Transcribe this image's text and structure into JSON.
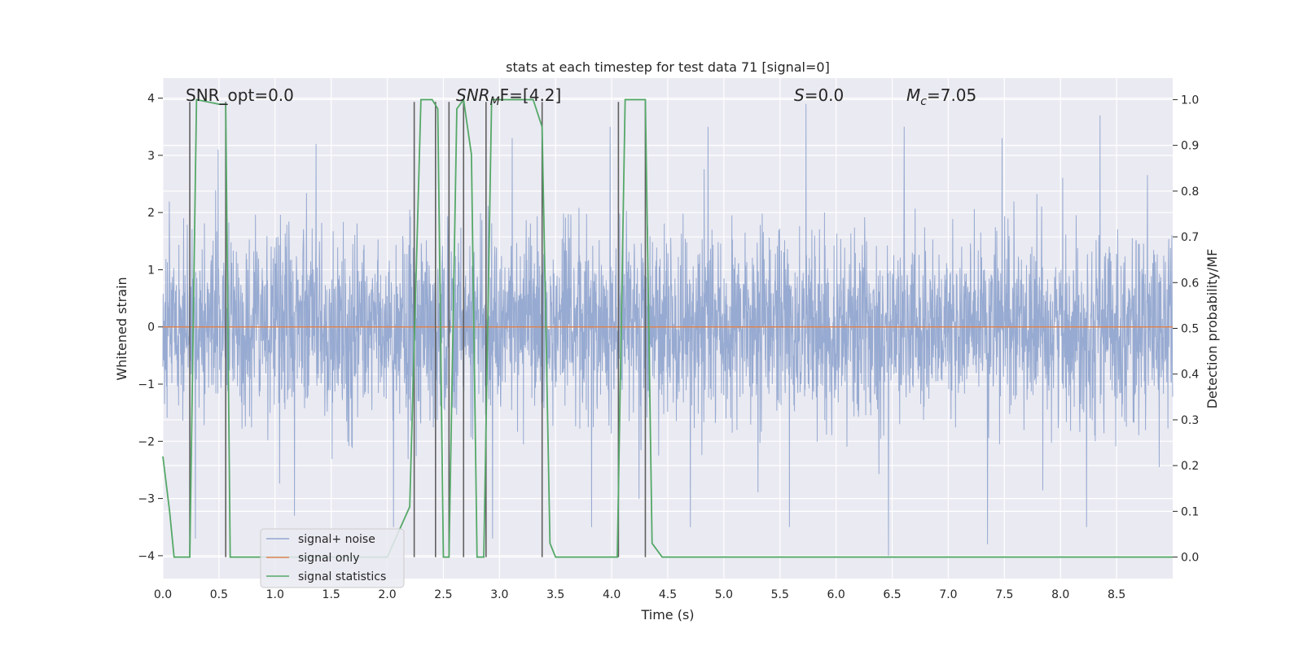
{
  "chart_data": {
    "type": "line",
    "title": "stats at each timestep for test data 71 [signal=0]",
    "xlabel": "Time (s)",
    "ylabel": "Whitened strain",
    "y2label": "Detection probability/MF",
    "xlim": [
      0,
      9.0
    ],
    "ylim": [
      -4.4,
      4.35
    ],
    "y2lim": [
      -0.047,
      1.047
    ],
    "xticks": [
      "0.0",
      "0.5",
      "1.0",
      "1.5",
      "2.0",
      "2.5",
      "3.0",
      "3.5",
      "4.0",
      "4.5",
      "5.0",
      "5.5",
      "6.0",
      "6.5",
      "7.0",
      "7.5",
      "8.0",
      "8.5"
    ],
    "yticks": [
      "4",
      "3",
      "2",
      "1",
      "0",
      "−1",
      "−2",
      "−3",
      "−4"
    ],
    "y2ticks": [
      "1.0",
      "0.9",
      "0.8",
      "0.7",
      "0.6",
      "0.5",
      "0.4",
      "0.3",
      "0.2",
      "0.1",
      "0.0"
    ],
    "grid": true,
    "legend_position": "lower-left",
    "annotations": {
      "snr_opt": "SNR_opt=0.0",
      "snr_mf_prefix": "SNR",
      "snr_mf_sub": "M",
      "snr_mf_suffix": "F=[4.2]",
      "s_var": "S",
      "s_val": "=0.0",
      "mc_var": "M",
      "mc_sub": "c",
      "mc_val": "=7.05"
    },
    "series": [
      {
        "name": "signal+ noise",
        "color": "#92a6cf",
        "description": "whitened strain, noise only; band roughly between -1.6 and 1.6 with spikes up to about 3.9 and down to -4.0",
        "noise_std": 0.78,
        "spike_peaks_up": [
          3.1,
          3.2,
          3.5,
          3.3,
          3.5,
          3.5,
          3.9,
          3.5,
          3.3,
          3.7
        ],
        "spike_peaks_down": [
          -3.7,
          -3.3,
          -3.5,
          -3.7,
          -3.5,
          -3.5,
          -3.5,
          -4.0,
          -3.8,
          -3.5
        ]
      },
      {
        "name": "signal only",
        "color": "#dd8452",
        "x": [
          0,
          9.0
        ],
        "y": [
          0,
          0
        ]
      },
      {
        "name": "signal statistics",
        "color": "#55a868",
        "axis": "right",
        "x": [
          0.0,
          0.06,
          0.1,
          0.24,
          0.3,
          0.5,
          0.56,
          0.6,
          0.8,
          1.0,
          1.5,
          2.0,
          2.2,
          2.3,
          2.4,
          2.45,
          2.5,
          2.55,
          2.62,
          2.68,
          2.75,
          2.8,
          2.86,
          2.93,
          3.0,
          3.3,
          3.38,
          3.45,
          3.5,
          3.8,
          4.05,
          4.12,
          4.3,
          4.36,
          4.45,
          4.6,
          5.0,
          9.0
        ],
        "y": [
          0.22,
          0.1,
          0.0,
          0.0,
          1.0,
          0.99,
          0.99,
          0.0,
          0.0,
          0.0,
          0.0,
          0.0,
          0.11,
          1.0,
          1.0,
          0.98,
          0.0,
          0.0,
          0.98,
          1.0,
          0.88,
          0.0,
          0.0,
          1.0,
          1.0,
          1.0,
          0.94,
          0.03,
          0.0,
          0.0,
          0.0,
          1.0,
          1.0,
          0.03,
          0.0,
          0.0,
          0.0,
          0.0
        ]
      }
    ],
    "vertical_markers": {
      "color": "#606060",
      "x": [
        0.24,
        0.56,
        2.24,
        2.43,
        2.55,
        2.68,
        2.88,
        3.38,
        4.06,
        4.3
      ],
      "marker_top": 0.995,
      "marker_bottom": 0.0
    }
  }
}
